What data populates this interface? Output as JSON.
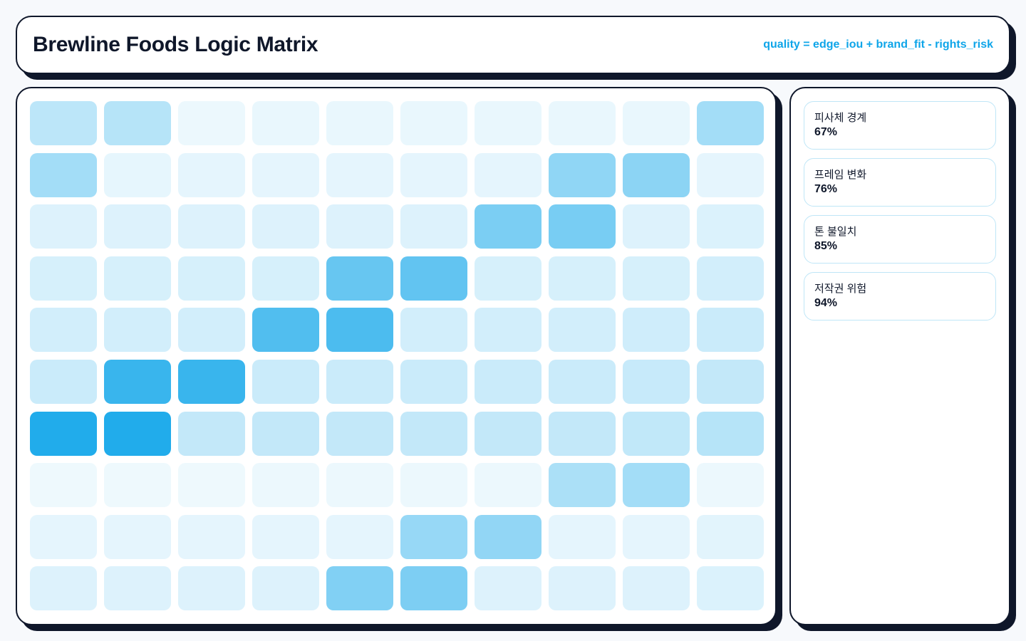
{
  "header": {
    "title": "Brewline Foods Logic Matrix",
    "formula": "quality = edge_iou + brand_fit - rights_risk"
  },
  "matrix": {
    "color": "#0ea5e9",
    "cells": [
      [
        0.28,
        0.3,
        0.08,
        0.09,
        0.09,
        0.09,
        0.09,
        0.09,
        0.09,
        0.38
      ],
      [
        0.38,
        0.1,
        0.11,
        0.11,
        0.11,
        0.11,
        0.11,
        0.46,
        0.48,
        0.11
      ],
      [
        0.14,
        0.14,
        0.14,
        0.14,
        0.14,
        0.14,
        0.55,
        0.56,
        0.14,
        0.15
      ],
      [
        0.17,
        0.17,
        0.17,
        0.17,
        0.63,
        0.65,
        0.17,
        0.17,
        0.17,
        0.19
      ],
      [
        0.19,
        0.19,
        0.19,
        0.72,
        0.74,
        0.19,
        0.19,
        0.19,
        0.2,
        0.22
      ],
      [
        0.22,
        0.82,
        0.82,
        0.22,
        0.22,
        0.22,
        0.22,
        0.22,
        0.23,
        0.25
      ],
      [
        0.92,
        0.92,
        0.25,
        0.25,
        0.25,
        0.25,
        0.25,
        0.25,
        0.26,
        0.3
      ],
      [
        0.07,
        0.07,
        0.07,
        0.08,
        0.08,
        0.08,
        0.08,
        0.35,
        0.38,
        0.08
      ],
      [
        0.11,
        0.11,
        0.11,
        0.11,
        0.11,
        0.43,
        0.45,
        0.11,
        0.11,
        0.12
      ],
      [
        0.14,
        0.14,
        0.14,
        0.14,
        0.52,
        0.54,
        0.14,
        0.14,
        0.14,
        0.15
      ]
    ]
  },
  "metrics": [
    {
      "label": "피사체 경계",
      "value": "67%"
    },
    {
      "label": "프레임 변화",
      "value": "76%"
    },
    {
      "label": "톤 불일치",
      "value": "85%"
    },
    {
      "label": "저작권 위험",
      "value": "94%"
    }
  ]
}
